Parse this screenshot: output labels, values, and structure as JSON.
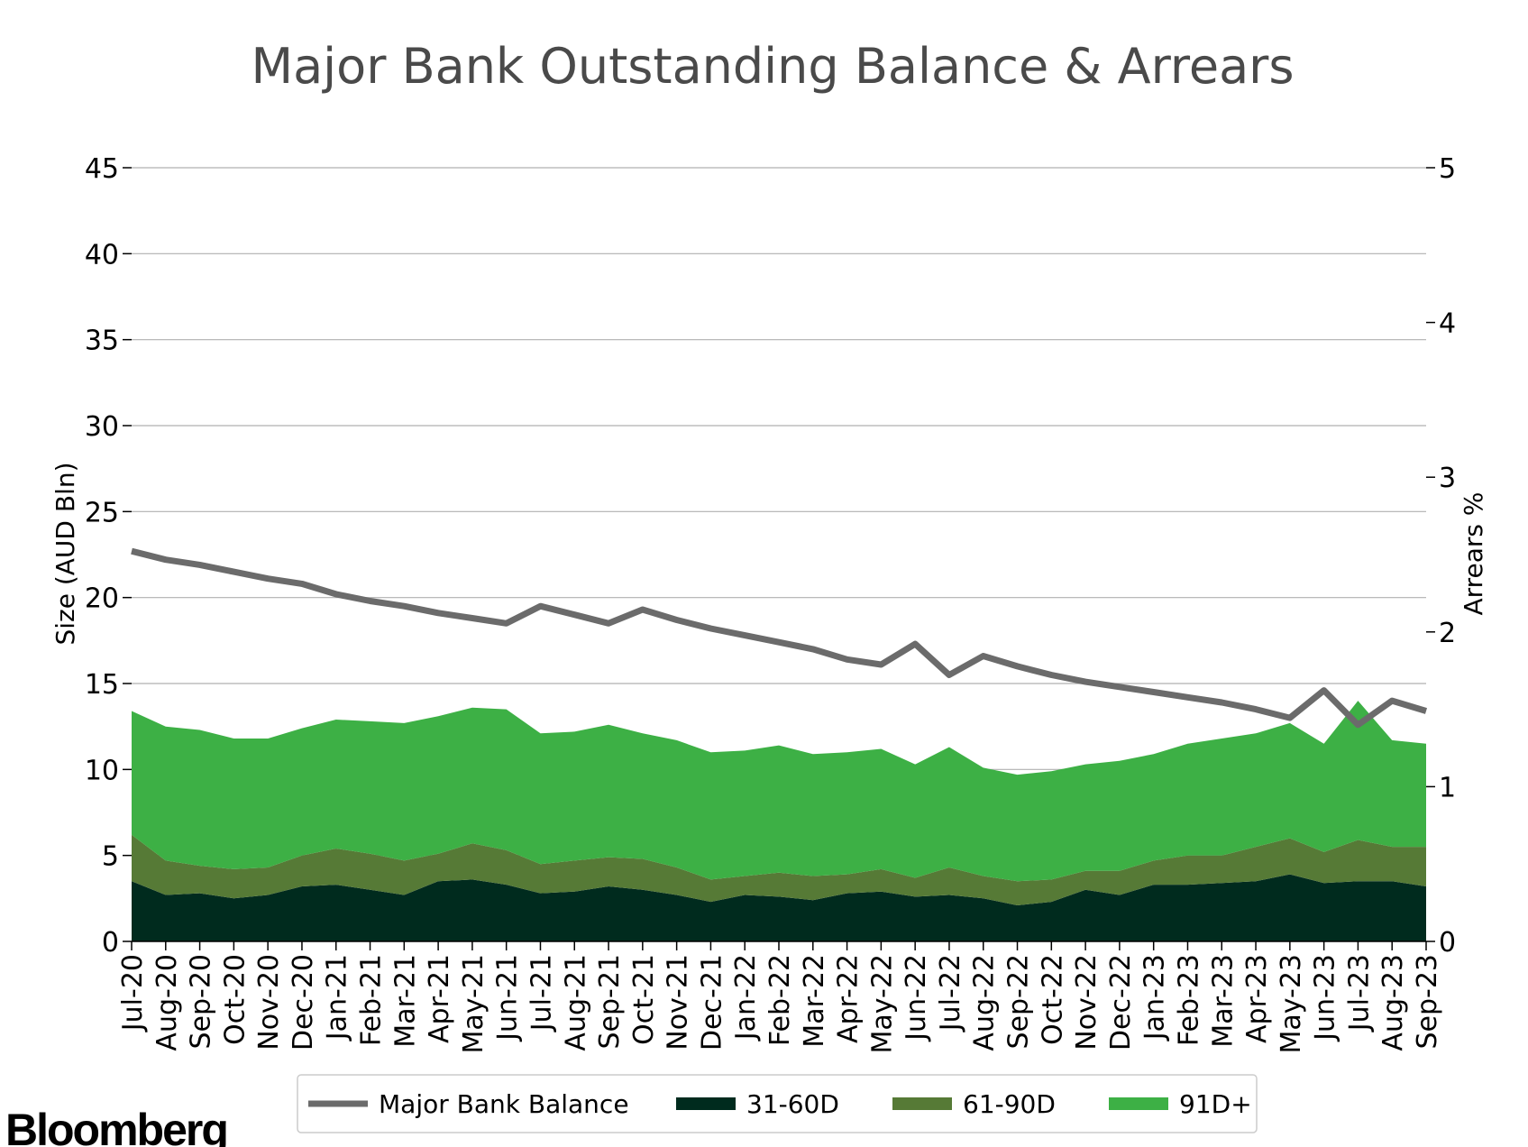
{
  "brand": "Bloomberg",
  "colors": {
    "balance": "#6b6b6b",
    "d31_60": "#002b1e",
    "d61_90": "#567a36",
    "d91_plus": "#3db045",
    "grid": "#b0b0b0",
    "title": "#4a4a4a"
  },
  "chart_data": {
    "type": "area",
    "title": "Major Bank Outstanding Balance & Arrears",
    "ylabel_left": "Size (AUD Bln)",
    "ylabel_right": "Arrears %",
    "ylim_left": [
      0,
      45
    ],
    "ylim_right": [
      0,
      5
    ],
    "yticks_left": [
      "0",
      "5",
      "10",
      "15",
      "20",
      "25",
      "30",
      "35",
      "40",
      "45"
    ],
    "yticks_right": [
      "0",
      "1",
      "2",
      "3",
      "4",
      "5"
    ],
    "grid": "horizontal",
    "legend_position": "bottom",
    "categories": [
      "Jul-20",
      "Aug-20",
      "Sep-20",
      "Oct-20",
      "Nov-20",
      "Dec-20",
      "Jan-21",
      "Feb-21",
      "Mar-21",
      "Apr-21",
      "May-21",
      "Jun-21",
      "Jul-21",
      "Aug-21",
      "Sep-21",
      "Oct-21",
      "Nov-21",
      "Dec-21",
      "Jan-22",
      "Feb-22",
      "Mar-22",
      "Apr-22",
      "May-22",
      "Jun-22",
      "Jul-22",
      "Aug-22",
      "Sep-22",
      "Oct-22",
      "Nov-22",
      "Dec-22",
      "Jan-23",
      "Feb-23",
      "Mar-23",
      "Apr-23",
      "May-23",
      "Jun-23",
      "Jul-23",
      "Aug-23",
      "Sep-23"
    ],
    "series": [
      {
        "name": "Major Bank Balance",
        "kind": "line",
        "axis": "left",
        "values": [
          22.7,
          22.2,
          21.9,
          21.5,
          21.1,
          20.8,
          20.2,
          19.8,
          19.5,
          19.1,
          18.8,
          18.5,
          19.5,
          19.0,
          18.5,
          19.3,
          18.7,
          18.2,
          17.8,
          17.4,
          17.0,
          16.4,
          16.1,
          17.3,
          15.5,
          16.6,
          16.0,
          15.5,
          15.1,
          14.8,
          14.5,
          14.2,
          13.9,
          13.5,
          13.0,
          14.6,
          12.6,
          14.0,
          13.4
        ]
      },
      {
        "name": "31-60D",
        "kind": "stacked-area",
        "axis": "left",
        "values": [
          3.5,
          2.7,
          2.8,
          2.5,
          2.7,
          3.2,
          3.3,
          3.0,
          2.7,
          3.5,
          3.6,
          3.3,
          2.8,
          2.9,
          3.2,
          3.0,
          2.7,
          2.3,
          2.7,
          2.6,
          2.4,
          2.8,
          2.9,
          2.6,
          2.7,
          2.5,
          2.1,
          2.3,
          3.0,
          2.7,
          3.3,
          3.3,
          3.4,
          3.5,
          3.9,
          3.4,
          3.5,
          3.5,
          3.2
        ]
      },
      {
        "name": "61-90D",
        "kind": "stacked-area",
        "axis": "left",
        "values": [
          2.7,
          2.0,
          1.6,
          1.7,
          1.6,
          1.8,
          2.1,
          2.1,
          2.0,
          1.6,
          2.1,
          2.0,
          1.7,
          1.8,
          1.7,
          1.8,
          1.6,
          1.3,
          1.1,
          1.4,
          1.4,
          1.1,
          1.3,
          1.1,
          1.6,
          1.3,
          1.4,
          1.3,
          1.1,
          1.4,
          1.4,
          1.7,
          1.6,
          2.0,
          2.1,
          1.8,
          2.4,
          2.0,
          2.3
        ]
      },
      {
        "name": "91D+",
        "kind": "stacked-area",
        "axis": "left",
        "values": [
          7.2,
          7.8,
          7.9,
          7.6,
          7.5,
          7.4,
          7.5,
          7.7,
          8.0,
          8.0,
          7.9,
          8.2,
          7.6,
          7.5,
          7.7,
          7.3,
          7.4,
          7.4,
          7.3,
          7.4,
          7.1,
          7.1,
          7.0,
          6.6,
          7.0,
          6.3,
          6.2,
          6.3,
          6.2,
          6.4,
          6.2,
          6.5,
          6.8,
          6.6,
          6.7,
          6.3,
          8.1,
          6.2,
          6.0
        ]
      }
    ]
  }
}
